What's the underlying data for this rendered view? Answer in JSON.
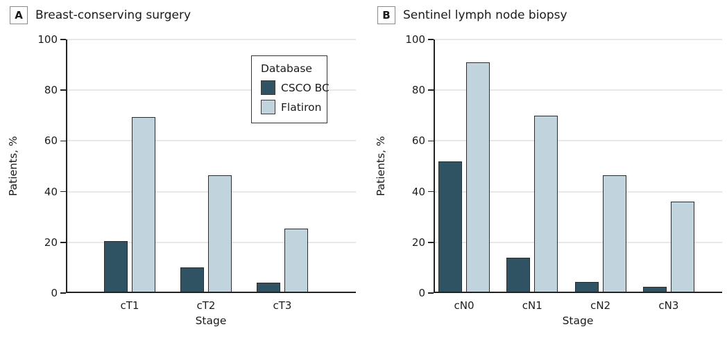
{
  "styles": {
    "axis_color": "#222222",
    "grid_color": "#e8e8e8",
    "text_color": "#1a1a1a",
    "bar_border_color": "#2b2b2b",
    "csco_bc_color": "#2F5362",
    "flatiron_color": "#C1D3DC"
  },
  "chart_data": [
    {
      "type": "bar",
      "panel_letter": "A",
      "title": "Breast-conserving surgery",
      "categories": [
        "cT1",
        "cT2",
        "cT3"
      ],
      "series": [
        {
          "name": "CSCO BC",
          "color": "#2F5362",
          "values": [
            20.5,
            10,
            4
          ]
        },
        {
          "name": "Flatiron",
          "color": "#C1D3DC",
          "values": [
            69.5,
            46.5,
            25.5
          ]
        }
      ],
      "xlabel": "Stage",
      "ylabel": "Patients, %",
      "ylim": [
        0,
        100
      ],
      "yticks": [
        0,
        20,
        40,
        60,
        80,
        100
      ],
      "grid": true,
      "legend": {
        "visible": true,
        "title": "Database",
        "position": "top-right"
      }
    },
    {
      "type": "bar",
      "panel_letter": "B",
      "title": "Sentinel lymph node biopsy",
      "categories": [
        "cN0",
        "cN1",
        "cN2",
        "cN3"
      ],
      "series": [
        {
          "name": "CSCO BC",
          "color": "#2F5362",
          "values": [
            52,
            14,
            4.5,
            2.5
          ]
        },
        {
          "name": "Flatiron",
          "color": "#C1D3DC",
          "values": [
            91,
            70,
            46.5,
            36
          ]
        }
      ],
      "xlabel": "Stage",
      "ylabel": "Patients, %",
      "ylim": [
        0,
        100
      ],
      "yticks": [
        0,
        20,
        40,
        60,
        80,
        100
      ],
      "grid": true,
      "legend": {
        "visible": false
      }
    }
  ]
}
